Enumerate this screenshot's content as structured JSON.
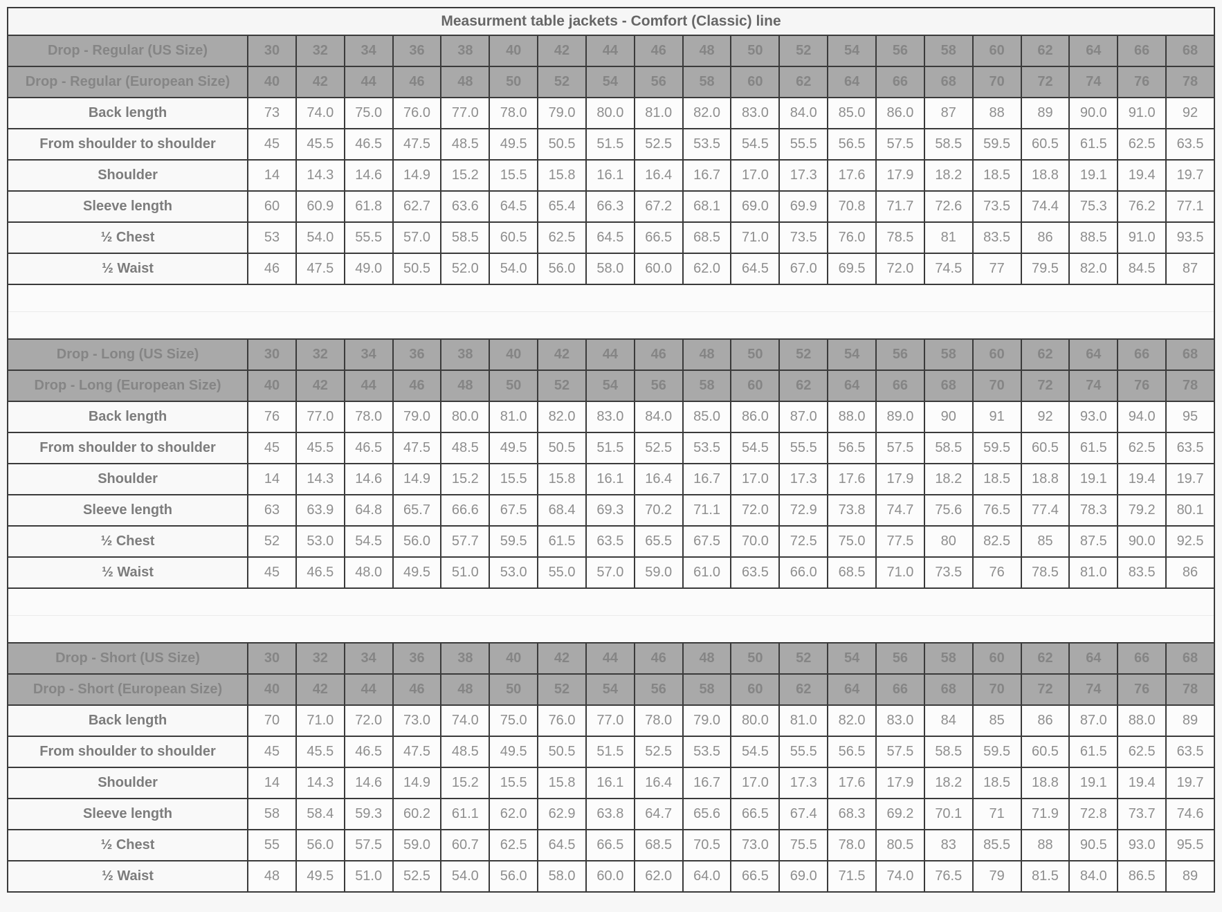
{
  "page": {
    "title": "Measurment table jackets - Comfort (Classic) line"
  },
  "table": {
    "sizes_us": [
      "30",
      "32",
      "34",
      "36",
      "38",
      "40",
      "42",
      "44",
      "46",
      "48",
      "50",
      "52",
      "54",
      "56",
      "58",
      "60",
      "62",
      "64",
      "66",
      "68"
    ],
    "sizes_eu": [
      "40",
      "42",
      "44",
      "46",
      "48",
      "50",
      "52",
      "54",
      "56",
      "58",
      "60",
      "62",
      "64",
      "66",
      "68",
      "70",
      "72",
      "74",
      "76",
      "78"
    ],
    "sections": [
      {
        "us_label": "Drop - Regular (US Size)",
        "eu_label": "Drop - Regular (European Size)",
        "rows": [
          {
            "label": "Back length",
            "values": [
              "73",
              "74.0",
              "75.0",
              "76.0",
              "77.0",
              "78.0",
              "79.0",
              "80.0",
              "81.0",
              "82.0",
              "83.0",
              "84.0",
              "85.0",
              "86.0",
              "87",
              "88",
              "89",
              "90.0",
              "91.0",
              "92"
            ]
          },
          {
            "label": "From shoulder to shoulder",
            "values": [
              "45",
              "45.5",
              "46.5",
              "47.5",
              "48.5",
              "49.5",
              "50.5",
              "51.5",
              "52.5",
              "53.5",
              "54.5",
              "55.5",
              "56.5",
              "57.5",
              "58.5",
              "59.5",
              "60.5",
              "61.5",
              "62.5",
              "63.5"
            ]
          },
          {
            "label": "Shoulder",
            "values": [
              "14",
              "14.3",
              "14.6",
              "14.9",
              "15.2",
              "15.5",
              "15.8",
              "16.1",
              "16.4",
              "16.7",
              "17.0",
              "17.3",
              "17.6",
              "17.9",
              "18.2",
              "18.5",
              "18.8",
              "19.1",
              "19.4",
              "19.7"
            ]
          },
          {
            "label": "Sleeve length",
            "values": [
              "60",
              "60.9",
              "61.8",
              "62.7",
              "63.6",
              "64.5",
              "65.4",
              "66.3",
              "67.2",
              "68.1",
              "69.0",
              "69.9",
              "70.8",
              "71.7",
              "72.6",
              "73.5",
              "74.4",
              "75.3",
              "76.2",
              "77.1"
            ]
          },
          {
            "label": "½ Chest",
            "values": [
              "53",
              "54.0",
              "55.5",
              "57.0",
              "58.5",
              "60.5",
              "62.5",
              "64.5",
              "66.5",
              "68.5",
              "71.0",
              "73.5",
              "76.0",
              "78.5",
              "81",
              "83.5",
              "86",
              "88.5",
              "91.0",
              "93.5"
            ]
          },
          {
            "label": "½ Waist",
            "values": [
              "46",
              "47.5",
              "49.0",
              "50.5",
              "52.0",
              "54.0",
              "56.0",
              "58.0",
              "60.0",
              "62.0",
              "64.5",
              "67.0",
              "69.5",
              "72.0",
              "74.5",
              "77",
              "79.5",
              "82.0",
              "84.5",
              "87"
            ]
          }
        ]
      },
      {
        "us_label": "Drop - Long (US Size)",
        "eu_label": "Drop - Long (European Size)",
        "rows": [
          {
            "label": "Back length",
            "values": [
              "76",
              "77.0",
              "78.0",
              "79.0",
              "80.0",
              "81.0",
              "82.0",
              "83.0",
              "84.0",
              "85.0",
              "86.0",
              "87.0",
              "88.0",
              "89.0",
              "90",
              "91",
              "92",
              "93.0",
              "94.0",
              "95"
            ]
          },
          {
            "label": "From shoulder to shoulder",
            "values": [
              "45",
              "45.5",
              "46.5",
              "47.5",
              "48.5",
              "49.5",
              "50.5",
              "51.5",
              "52.5",
              "53.5",
              "54.5",
              "55.5",
              "56.5",
              "57.5",
              "58.5",
              "59.5",
              "60.5",
              "61.5",
              "62.5",
              "63.5"
            ]
          },
          {
            "label": "Shoulder",
            "values": [
              "14",
              "14.3",
              "14.6",
              "14.9",
              "15.2",
              "15.5",
              "15.8",
              "16.1",
              "16.4",
              "16.7",
              "17.0",
              "17.3",
              "17.6",
              "17.9",
              "18.2",
              "18.5",
              "18.8",
              "19.1",
              "19.4",
              "19.7"
            ]
          },
          {
            "label": "Sleeve length",
            "values": [
              "63",
              "63.9",
              "64.8",
              "65.7",
              "66.6",
              "67.5",
              "68.4",
              "69.3",
              "70.2",
              "71.1",
              "72.0",
              "72.9",
              "73.8",
              "74.7",
              "75.6",
              "76.5",
              "77.4",
              "78.3",
              "79.2",
              "80.1"
            ]
          },
          {
            "label": "½ Chest",
            "values": [
              "52",
              "53.0",
              "54.5",
              "56.0",
              "57.7",
              "59.5",
              "61.5",
              "63.5",
              "65.5",
              "67.5",
              "70.0",
              "72.5",
              "75.0",
              "77.5",
              "80",
              "82.5",
              "85",
              "87.5",
              "90.0",
              "92.5"
            ]
          },
          {
            "label": "½ Waist",
            "values": [
              "45",
              "46.5",
              "48.0",
              "49.5",
              "51.0",
              "53.0",
              "55.0",
              "57.0",
              "59.0",
              "61.0",
              "63.5",
              "66.0",
              "68.5",
              "71.0",
              "73.5",
              "76",
              "78.5",
              "81.0",
              "83.5",
              "86"
            ]
          }
        ]
      },
      {
        "us_label": "Drop - Short (US Size)",
        "eu_label": "Drop - Short (European Size)",
        "rows": [
          {
            "label": "Back length",
            "values": [
              "70",
              "71.0",
              "72.0",
              "73.0",
              "74.0",
              "75.0",
              "76.0",
              "77.0",
              "78.0",
              "79.0",
              "80.0",
              "81.0",
              "82.0",
              "83.0",
              "84",
              "85",
              "86",
              "87.0",
              "88.0",
              "89"
            ]
          },
          {
            "label": "From shoulder to shoulder",
            "values": [
              "45",
              "45.5",
              "46.5",
              "47.5",
              "48.5",
              "49.5",
              "50.5",
              "51.5",
              "52.5",
              "53.5",
              "54.5",
              "55.5",
              "56.5",
              "57.5",
              "58.5",
              "59.5",
              "60.5",
              "61.5",
              "62.5",
              "63.5"
            ]
          },
          {
            "label": "Shoulder",
            "values": [
              "14",
              "14.3",
              "14.6",
              "14.9",
              "15.2",
              "15.5",
              "15.8",
              "16.1",
              "16.4",
              "16.7",
              "17.0",
              "17.3",
              "17.6",
              "17.9",
              "18.2",
              "18.5",
              "18.8",
              "19.1",
              "19.4",
              "19.7"
            ]
          },
          {
            "label": "Sleeve length",
            "values": [
              "58",
              "58.4",
              "59.3",
              "60.2",
              "61.1",
              "62.0",
              "62.9",
              "63.8",
              "64.7",
              "65.6",
              "66.5",
              "67.4",
              "68.3",
              "69.2",
              "70.1",
              "71",
              "71.9",
              "72.8",
              "73.7",
              "74.6"
            ]
          },
          {
            "label": "½ Chest",
            "values": [
              "55",
              "56.0",
              "57.5",
              "59.0",
              "60.7",
              "62.5",
              "64.5",
              "66.5",
              "68.5",
              "70.5",
              "73.0",
              "75.5",
              "78.0",
              "80.5",
              "83",
              "85.5",
              "88",
              "90.5",
              "93.0",
              "95.5"
            ]
          },
          {
            "label": "½ Waist",
            "values": [
              "48",
              "49.5",
              "51.0",
              "52.5",
              "54.0",
              "56.0",
              "58.0",
              "60.0",
              "62.0",
              "64.0",
              "66.5",
              "69.0",
              "71.5",
              "74.0",
              "76.5",
              "79",
              "81.5",
              "84.0",
              "86.5",
              "89"
            ]
          }
        ]
      }
    ],
    "colors": {
      "header_bg": "#a9a9a9",
      "header_text": "#858585",
      "data_text": "#8e8e8e",
      "label_text": "#7c7c7c",
      "title_text": "#666666",
      "border_dark": "#3a3a3a",
      "border_light": "#c9c9c9",
      "page_bg": "#f7f7f7"
    }
  }
}
